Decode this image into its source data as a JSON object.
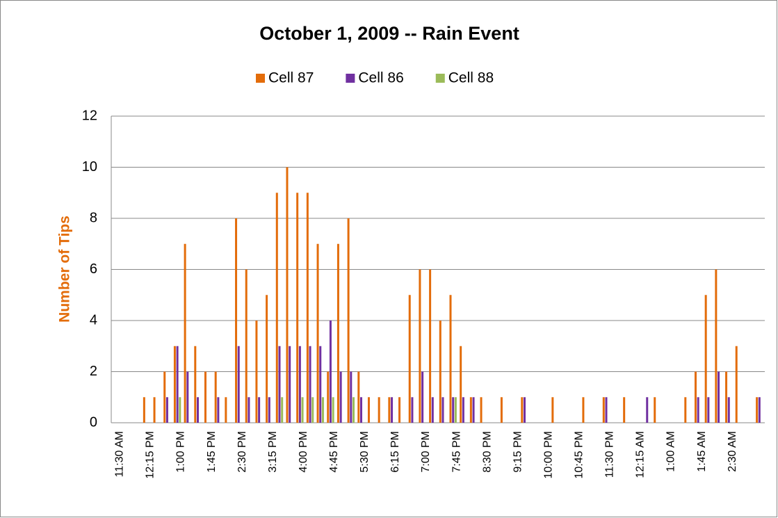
{
  "chart_data": {
    "type": "bar",
    "title": "October 1, 2009 -- Rain Event",
    "y_label": "Number of Tips",
    "categories": [
      "11:30 AM",
      null,
      null,
      "12:15 PM",
      null,
      null,
      "1:00 PM",
      null,
      null,
      "1:45 PM",
      null,
      null,
      "2:30 PM",
      null,
      null,
      "3:15 PM",
      null,
      null,
      "4:00 PM",
      null,
      null,
      "4:45 PM",
      null,
      null,
      "5:30 PM",
      null,
      null,
      "6:15 PM",
      null,
      null,
      "7:00 PM",
      null,
      null,
      "7:45 PM",
      null,
      null,
      "8:30 PM",
      null,
      null,
      "9:15 PM",
      null,
      null,
      "10:00 PM",
      null,
      null,
      "10:45 PM",
      null,
      null,
      "11:30 PM",
      null,
      null,
      "12:15 AM",
      null,
      null,
      "1:00 AM",
      null,
      null,
      "1:45 AM",
      null,
      null,
      "2:30 AM",
      null,
      null,
      null
    ],
    "series": [
      {
        "name": "Cell 87",
        "color": "#e36c0a",
        "values": [
          0,
          0,
          0,
          1,
          1,
          2,
          3,
          7,
          3,
          2,
          2,
          1,
          8,
          6,
          4,
          5,
          9,
          10,
          9,
          9,
          7,
          2,
          7,
          8,
          2,
          1,
          1,
          1,
          1,
          5,
          6,
          6,
          4,
          5,
          3,
          1,
          1,
          0,
          1,
          0,
          1,
          0,
          0,
          1,
          0,
          0,
          1,
          0,
          1,
          0,
          1,
          0,
          0,
          1,
          0,
          0,
          1,
          2,
          5,
          6,
          2,
          3,
          0,
          1
        ]
      },
      {
        "name": "Cell 86",
        "color": "#7030a0",
        "values": [
          0,
          0,
          0,
          0,
          0,
          1,
          3,
          2,
          1,
          0,
          1,
          0,
          3,
          1,
          1,
          1,
          3,
          3,
          3,
          3,
          3,
          4,
          2,
          2,
          1,
          0,
          0,
          1,
          0,
          1,
          2,
          1,
          1,
          1,
          1,
          1,
          0,
          0,
          0,
          0,
          1,
          0,
          0,
          0,
          0,
          0,
          0,
          0,
          1,
          0,
          0,
          0,
          1,
          0,
          0,
          0,
          0,
          1,
          1,
          2,
          1,
          0,
          0,
          1
        ]
      },
      {
        "name": "Cell 88",
        "color": "#9bbb59",
        "values": [
          0,
          0,
          0,
          0,
          0,
          0,
          1,
          0,
          0,
          0,
          0,
          0,
          0,
          0,
          0,
          0,
          1,
          0,
          1,
          1,
          1,
          1,
          0,
          1,
          0,
          0,
          0,
          0,
          0,
          0,
          0,
          0,
          0,
          1,
          0,
          0,
          0,
          0,
          0,
          0,
          0,
          0,
          0,
          0,
          0,
          0,
          0,
          0,
          0,
          0,
          0,
          0,
          0,
          0,
          0,
          0,
          0,
          0,
          0,
          0,
          0,
          0,
          0,
          0
        ]
      }
    ],
    "ylim": [
      0,
      12
    ],
    "yticks": [
      0,
      2,
      4,
      6,
      8,
      10,
      12
    ],
    "grid": true,
    "legend": "top"
  }
}
